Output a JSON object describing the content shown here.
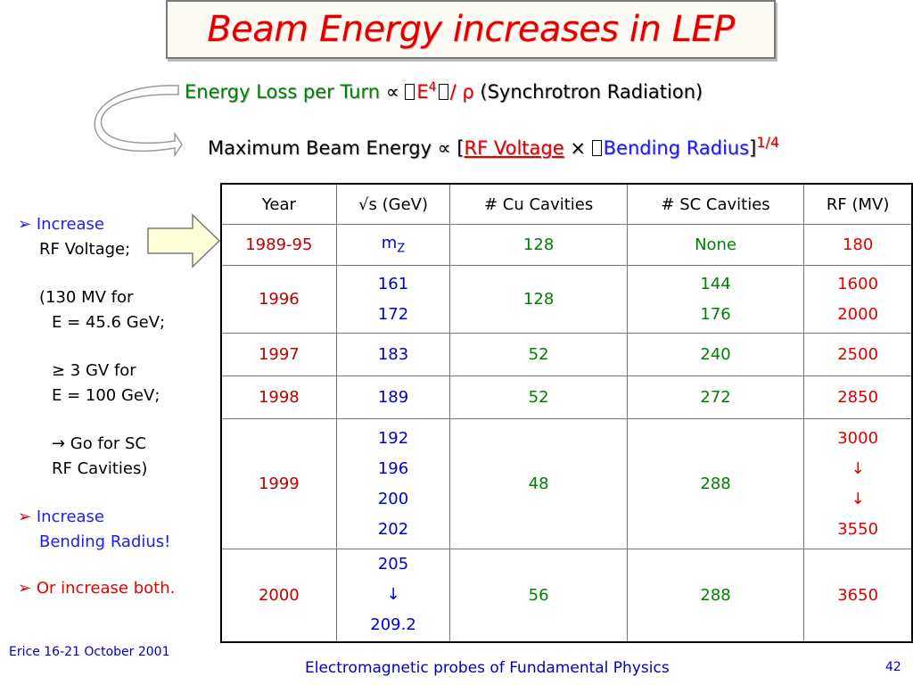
{
  "title": "Beam Energy increases in LEP",
  "line1": {
    "part1": "Energy Loss per Turn ",
    "prop": "∝ ",
    "box1": "",
    "e": "E",
    "exp": "4",
    "box2": "",
    "slash": "/ ",
    "rho": "ρ ",
    "note": "(Synchrotron Radiation)"
  },
  "line2": {
    "part1": "Maximum Beam Energy ",
    "prop": "∝ [",
    "rf": "RF Voltage",
    "times": " × ",
    "box": "",
    "br": "Bending Radius",
    "close": "]",
    "exp": "1/4"
  },
  "left": {
    "b1_line1": "Increase",
    "b1_line2": "RF Voltage;",
    "p1_line1": "(130 MV for",
    "p1_line2": "E = 45.6 GeV;",
    "p2_line1": "≥ 3 GV for",
    "p2_line2": "E = 100 GeV;",
    "p3_line1": "→ Go for SC",
    "p3_line2": "RF Cavities)",
    "b2_line1": "Increase",
    "b2_line2": "Bending Radius!",
    "b3": "Or increase both.",
    "bullet": "➢"
  },
  "table": {
    "headers": [
      "Year",
      "√s (GeV)",
      "# Cu Cavities",
      "# SC Cavities",
      "RF (MV)"
    ],
    "rows": [
      {
        "year": "1989-95",
        "s": [
          "m",
          "Z"
        ],
        "cu": "128",
        "sc": [
          "None"
        ],
        "rf": [
          "180"
        ]
      },
      {
        "year": "1996",
        "s": [
          "161",
          "172"
        ],
        "cu": "128",
        "sc": [
          "144",
          "176"
        ],
        "rf": [
          "1600",
          "2000"
        ]
      },
      {
        "year": "1997",
        "s": [
          "183"
        ],
        "cu": "52",
        "sc": [
          "240"
        ],
        "rf": [
          "2500"
        ]
      },
      {
        "year": "1998",
        "s": [
          "189"
        ],
        "cu": "52",
        "sc": [
          "272"
        ],
        "rf": [
          "2850"
        ]
      },
      {
        "year": "1999",
        "s": [
          "192",
          "196",
          "200",
          "202"
        ],
        "cu": "48",
        "sc": [
          "288"
        ],
        "rf": [
          "3000",
          "↓",
          "↓",
          "3550"
        ]
      },
      {
        "year": "2000",
        "s": [
          "205",
          "↓",
          "209.2"
        ],
        "cu": "56",
        "sc": [
          "288"
        ],
        "rf": [
          "3650"
        ]
      }
    ]
  },
  "footer": {
    "left": "Erice 16-21 October 2001",
    "center": "Electromagnetic probes of Fundamental Physics",
    "page": "42"
  }
}
